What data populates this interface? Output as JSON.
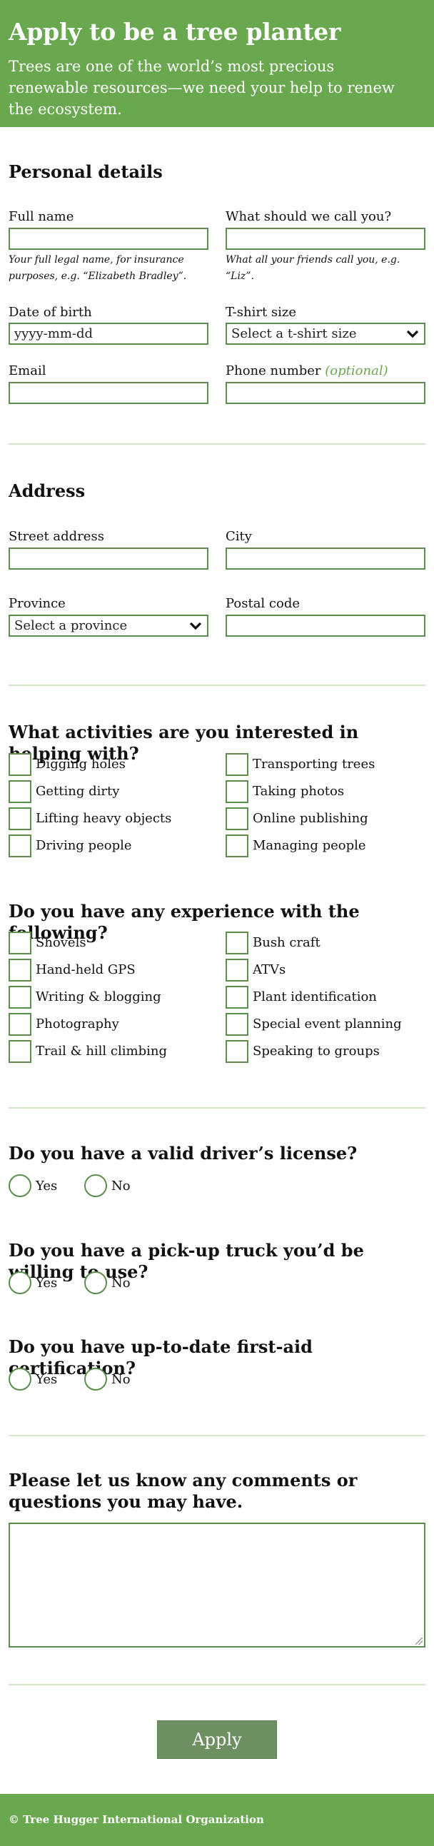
{
  "header": {
    "title": "Apply to be a tree planter",
    "subtitle": "Trees are one of the world’s most precious renewable resources—we need your help to renew the ecosystem."
  },
  "personal": {
    "heading": "Personal details",
    "full_name_label": "Full name",
    "full_name_hint": "Your full legal name, for insurance purposes, e.g. “Elizabeth Bradley”.",
    "nickname_label": "What should we call you?",
    "nickname_hint": "What all your friends call you, e.g. “Liz”.",
    "dob_label": "Date of birth",
    "dob_placeholder": "yyyy-mm-dd",
    "tshirt_label": "T-shirt size",
    "tshirt_selected": "Select a t-shirt size",
    "email_label": "Email",
    "phone_label": "Phone number",
    "phone_optional": "(optional)"
  },
  "address": {
    "heading": "Address",
    "street_label": "Street address",
    "city_label": "City",
    "province_label": "Province",
    "province_selected": "Select a province",
    "postal_label": "Postal code"
  },
  "activities": {
    "heading": "What activities are you interested in helping with?",
    "left": [
      "Digging holes",
      "Getting dirty",
      "Lifting heavy objects",
      "Driving people"
    ],
    "right": [
      "Transporting trees",
      "Taking photos",
      "Online publishing",
      "Managing people"
    ]
  },
  "experience": {
    "heading": "Do you have any experience with the following?",
    "left": [
      "Shovels",
      "Hand-held GPS",
      "Writing & blogging",
      "Photography",
      "Trail & hill climbing"
    ],
    "right": [
      "Bush craft",
      "ATVs",
      "Plant identification",
      "Special event planning",
      "Speaking to groups"
    ]
  },
  "questions": [
    {
      "heading": "Do you have a valid driver’s license?",
      "yes": "Yes",
      "no": "No"
    },
    {
      "heading": "Do you have a pick-up truck you’d be willing to use?",
      "yes": "Yes",
      "no": "No"
    },
    {
      "heading": "Do you have up-to-date first-aid certification?",
      "yes": "Yes",
      "no": "No"
    }
  ],
  "comments": {
    "heading": "Please let us know any comments or questions you may have."
  },
  "apply_label": "Apply",
  "footer": {
    "text": "© Tree Hugger International Organization"
  },
  "colors": {
    "brand_green": "#6aa84f",
    "field_border": "#5a8f4a",
    "button": "#6d8f62",
    "divider": "#d4e8c9"
  },
  "icons": {
    "select_chevron": "chevron-down-icon"
  }
}
